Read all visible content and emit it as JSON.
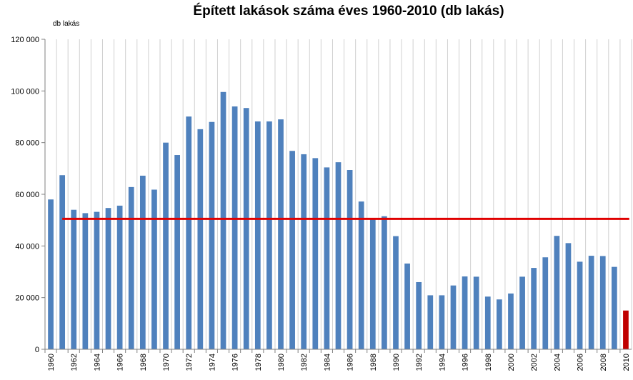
{
  "chart_data": {
    "type": "bar",
    "title": "Épített lakások száma éves 1960-2010 (db lakás)",
    "ylabel": "db lakás",
    "xlabel": "",
    "ylim": [
      0,
      120000
    ],
    "y_ticks": [
      "0",
      "20 000",
      "40 000",
      "60 000",
      "80 000",
      "100 000",
      "120 000"
    ],
    "grid": "vertical",
    "categories": [
      "1960",
      "1961",
      "1962",
      "1963",
      "1964",
      "1965",
      "1966",
      "1967",
      "1968",
      "1969",
      "1970",
      "1971",
      "1972",
      "1973",
      "1974",
      "1975",
      "1976",
      "1977",
      "1978",
      "1979",
      "1980",
      "1981",
      "1982",
      "1983",
      "1984",
      "1985",
      "1986",
      "1987",
      "1988",
      "1989",
      "1990",
      "1991",
      "1992",
      "1993",
      "1994",
      "1995",
      "1996",
      "1997",
      "1998",
      "1999",
      "2000",
      "2001",
      "2002",
      "2003",
      "2004",
      "2005",
      "2006",
      "2007",
      "2008",
      "2009",
      "2010"
    ],
    "x_tick_labels": [
      "1960",
      "",
      "1962",
      "",
      "1964",
      "",
      "1966",
      "",
      "1968",
      "",
      "1970",
      "",
      "1972",
      "",
      "1974",
      "",
      "1976",
      "",
      "1978",
      "",
      "1980",
      "",
      "1982",
      "",
      "1984",
      "",
      "1986",
      "",
      "1988",
      "",
      "1990",
      "",
      "1992",
      "",
      "1994",
      "",
      "1996",
      "",
      "1998",
      "",
      "2000",
      "",
      "2002",
      "",
      "2004",
      "",
      "2006",
      "",
      "2008",
      "",
      "2010"
    ],
    "values": [
      58000,
      67400,
      54000,
      52700,
      53200,
      54700,
      55600,
      62800,
      67200,
      61800,
      80000,
      75200,
      90100,
      85200,
      88000,
      99600,
      94000,
      93400,
      88200,
      88200,
      89000,
      76800,
      75500,
      74000,
      70400,
      72400,
      69400,
      57200,
      50600,
      51500,
      43800,
      33200,
      26000,
      20900,
      20900,
      24700,
      28200,
      28100,
      20400,
      19300,
      21600,
      28100,
      31500,
      35600,
      43900,
      41100,
      33900,
      36200,
      36100,
      31900,
      15000
    ],
    "bar_colors": {
      "default": "#4f81bd",
      "highlight": "#c00000"
    },
    "highlight_index": 50,
    "reference_line": {
      "value": 50500,
      "color": "#e00000",
      "from_index": 1,
      "to_index": 50
    }
  }
}
